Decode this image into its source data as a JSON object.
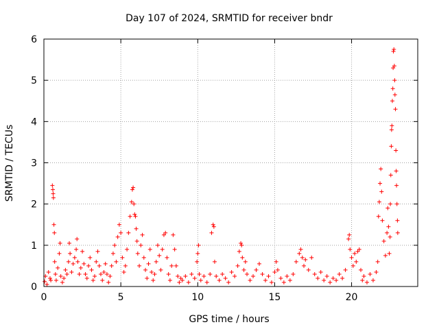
{
  "chart_data": {
    "type": "scatter",
    "title": "Day 107 of 2024, SRMTID for receiver bndr",
    "xlabel": "GPS time / hours",
    "ylabel": "SRMTID / TECUs",
    "xlim": [
      0,
      24.3
    ],
    "ylim": [
      0,
      6
    ],
    "xticks": [
      0,
      5,
      10,
      15,
      20
    ],
    "yticks": [
      0,
      1,
      2,
      3,
      4,
      5,
      6
    ],
    "xtick_labels": [
      "0",
      "5",
      "10",
      "15",
      "20"
    ],
    "ytick_labels": [
      "0",
      "1",
      "2",
      "3",
      "4",
      "5",
      "6"
    ],
    "grid": true,
    "marker": "+",
    "series": [
      {
        "name": "SRMTID",
        "color": "#ff0000",
        "points": [
          [
            0.05,
            0.12
          ],
          [
            0.1,
            0.25
          ],
          [
            0.2,
            0.05
          ],
          [
            0.3,
            0.35
          ],
          [
            0.4,
            0.2
          ],
          [
            0.45,
            0.15
          ],
          [
            0.55,
            2.45
          ],
          [
            0.58,
            2.35
          ],
          [
            0.6,
            2.25
          ],
          [
            0.62,
            2.15
          ],
          [
            0.65,
            1.5
          ],
          [
            0.68,
            1.3
          ],
          [
            0.7,
            0.6
          ],
          [
            0.75,
            0.3
          ],
          [
            0.8,
            0.15
          ],
          [
            0.9,
            0.45
          ],
          [
            1.0,
            0.8
          ],
          [
            1.05,
            1.05
          ],
          [
            1.1,
            0.25
          ],
          [
            1.2,
            0.1
          ],
          [
            1.3,
            0.2
          ],
          [
            1.4,
            0.4
          ],
          [
            1.5,
            0.3
          ],
          [
            1.6,
            0.6
          ],
          [
            1.65,
            1.05
          ],
          [
            1.7,
            0.8
          ],
          [
            1.8,
            0.35
          ],
          [
            1.9,
            0.55
          ],
          [
            2.0,
            0.7
          ],
          [
            2.1,
            0.9
          ],
          [
            2.15,
            1.15
          ],
          [
            2.2,
            0.6
          ],
          [
            2.3,
            0.3
          ],
          [
            2.4,
            0.45
          ],
          [
            2.5,
            0.85
          ],
          [
            2.6,
            0.55
          ],
          [
            2.7,
            0.3
          ],
          [
            2.8,
            0.2
          ],
          [
            2.9,
            0.5
          ],
          [
            3.0,
            0.7
          ],
          [
            3.1,
            0.4
          ],
          [
            3.2,
            0.15
          ],
          [
            3.3,
            0.25
          ],
          [
            3.4,
            0.6
          ],
          [
            3.5,
            0.85
          ],
          [
            3.6,
            0.5
          ],
          [
            3.7,
            0.3
          ],
          [
            3.8,
            0.15
          ],
          [
            3.9,
            0.35
          ],
          [
            4.0,
            0.55
          ],
          [
            4.1,
            0.3
          ],
          [
            4.2,
            0.1
          ],
          [
            4.3,
            0.25
          ],
          [
            4.4,
            0.5
          ],
          [
            4.5,
            0.8
          ],
          [
            4.6,
            1.0
          ],
          [
            4.7,
            0.6
          ],
          [
            4.8,
            1.2
          ],
          [
            4.9,
            1.5
          ],
          [
            5.0,
            1.3
          ],
          [
            5.1,
            0.7
          ],
          [
            5.2,
            0.35
          ],
          [
            5.3,
            0.5
          ],
          [
            5.4,
            0.9
          ],
          [
            5.5,
            1.3
          ],
          [
            5.6,
            1.7
          ],
          [
            5.7,
            2.05
          ],
          [
            5.75,
            2.35
          ],
          [
            5.8,
            2.4
          ],
          [
            5.85,
            2.0
          ],
          [
            5.9,
            1.75
          ],
          [
            5.95,
            1.7
          ],
          [
            6.0,
            1.4
          ],
          [
            6.05,
            1.1
          ],
          [
            6.1,
            0.8
          ],
          [
            6.2,
            0.5
          ],
          [
            6.3,
            1.0
          ],
          [
            6.4,
            1.25
          ],
          [
            6.5,
            0.7
          ],
          [
            6.6,
            0.4
          ],
          [
            6.7,
            0.2
          ],
          [
            6.8,
            0.55
          ],
          [
            6.9,
            0.9
          ],
          [
            7.0,
            0.35
          ],
          [
            7.1,
            0.15
          ],
          [
            7.2,
            0.3
          ],
          [
            7.3,
            0.6
          ],
          [
            7.4,
            1.0
          ],
          [
            7.5,
            0.75
          ],
          [
            7.6,
            0.4
          ],
          [
            7.7,
            0.9
          ],
          [
            7.8,
            1.25
          ],
          [
            7.9,
            1.3
          ],
          [
            8.0,
            0.7
          ],
          [
            8.1,
            0.3
          ],
          [
            8.2,
            0.15
          ],
          [
            8.3,
            0.5
          ],
          [
            8.4,
            1.25
          ],
          [
            8.5,
            0.9
          ],
          [
            8.6,
            0.5
          ],
          [
            8.7,
            0.25
          ],
          [
            8.8,
            0.1
          ],
          [
            8.9,
            0.2
          ],
          [
            9.0,
            0.15
          ],
          [
            9.2,
            0.25
          ],
          [
            9.4,
            0.1
          ],
          [
            9.6,
            0.3
          ],
          [
            9.8,
            0.2
          ],
          [
            9.95,
            0.6
          ],
          [
            10.0,
            0.8
          ],
          [
            10.05,
            1.0
          ],
          [
            10.1,
            0.3
          ],
          [
            10.2,
            0.15
          ],
          [
            10.4,
            0.25
          ],
          [
            10.6,
            0.1
          ],
          [
            10.8,
            0.3
          ],
          [
            10.9,
            1.3
          ],
          [
            11.0,
            1.5
          ],
          [
            11.05,
            1.45
          ],
          [
            11.1,
            0.6
          ],
          [
            11.2,
            0.25
          ],
          [
            11.4,
            0.15
          ],
          [
            11.6,
            0.3
          ],
          [
            11.8,
            0.2
          ],
          [
            12.0,
            0.1
          ],
          [
            12.2,
            0.35
          ],
          [
            12.4,
            0.25
          ],
          [
            12.6,
            0.5
          ],
          [
            12.7,
            0.85
          ],
          [
            12.8,
            1.05
          ],
          [
            12.85,
            1.0
          ],
          [
            12.9,
            0.7
          ],
          [
            13.0,
            0.4
          ],
          [
            13.1,
            0.6
          ],
          [
            13.2,
            0.3
          ],
          [
            13.4,
            0.15
          ],
          [
            13.6,
            0.25
          ],
          [
            13.8,
            0.4
          ],
          [
            14.0,
            0.55
          ],
          [
            14.2,
            0.3
          ],
          [
            14.4,
            0.15
          ],
          [
            14.6,
            0.25
          ],
          [
            14.8,
            0.1
          ],
          [
            15.0,
            0.35
          ],
          [
            15.1,
            0.6
          ],
          [
            15.2,
            0.4
          ],
          [
            15.4,
            0.2
          ],
          [
            15.6,
            0.1
          ],
          [
            15.8,
            0.25
          ],
          [
            16.0,
            0.15
          ],
          [
            16.2,
            0.3
          ],
          [
            16.4,
            0.6
          ],
          [
            16.6,
            0.8
          ],
          [
            16.7,
            0.9
          ],
          [
            16.8,
            0.7
          ],
          [
            16.9,
            0.5
          ],
          [
            17.0,
            0.65
          ],
          [
            17.2,
            0.4
          ],
          [
            17.4,
            0.7
          ],
          [
            17.6,
            0.3
          ],
          [
            17.8,
            0.2
          ],
          [
            18.0,
            0.35
          ],
          [
            18.2,
            0.15
          ],
          [
            18.4,
            0.25
          ],
          [
            18.6,
            0.1
          ],
          [
            18.8,
            0.2
          ],
          [
            19.0,
            0.15
          ],
          [
            19.2,
            0.3
          ],
          [
            19.4,
            0.2
          ],
          [
            19.6,
            0.4
          ],
          [
            19.8,
            1.15
          ],
          [
            19.85,
            1.25
          ],
          [
            19.9,
            0.9
          ],
          [
            20.0,
            0.7
          ],
          [
            20.1,
            0.5
          ],
          [
            20.2,
            0.8
          ],
          [
            20.3,
            0.6
          ],
          [
            20.4,
            0.85
          ],
          [
            20.5,
            0.9
          ],
          [
            20.6,
            0.4
          ],
          [
            20.7,
            0.15
          ],
          [
            20.8,
            0.25
          ],
          [
            21.0,
            0.1
          ],
          [
            21.2,
            0.3
          ],
          [
            21.4,
            0.15
          ],
          [
            21.6,
            0.35
          ],
          [
            21.7,
            0.6
          ],
          [
            21.75,
            1.7
          ],
          [
            21.8,
            2.05
          ],
          [
            21.85,
            2.5
          ],
          [
            21.9,
            2.85
          ],
          [
            21.95,
            2.3
          ],
          [
            22.0,
            1.6
          ],
          [
            22.1,
            1.1
          ],
          [
            22.2,
            0.75
          ],
          [
            22.3,
            1.3
          ],
          [
            22.35,
            1.9
          ],
          [
            22.4,
            1.45
          ],
          [
            22.45,
            0.8
          ],
          [
            22.5,
            1.2
          ],
          [
            22.52,
            2.0
          ],
          [
            22.55,
            2.7
          ],
          [
            22.58,
            3.4
          ],
          [
            22.6,
            3.8
          ],
          [
            22.62,
            3.9
          ],
          [
            22.65,
            4.5
          ],
          [
            22.68,
            4.8
          ],
          [
            22.7,
            5.3
          ],
          [
            22.72,
            5.7
          ],
          [
            22.75,
            5.75
          ],
          [
            22.78,
            5.35
          ],
          [
            22.8,
            5.0
          ],
          [
            22.82,
            4.65
          ],
          [
            22.85,
            4.3
          ],
          [
            22.88,
            3.3
          ],
          [
            22.9,
            2.8
          ],
          [
            22.92,
            2.45
          ],
          [
            22.95,
            2.0
          ],
          [
            22.98,
            1.6
          ],
          [
            23.0,
            1.3
          ]
        ]
      }
    ]
  }
}
